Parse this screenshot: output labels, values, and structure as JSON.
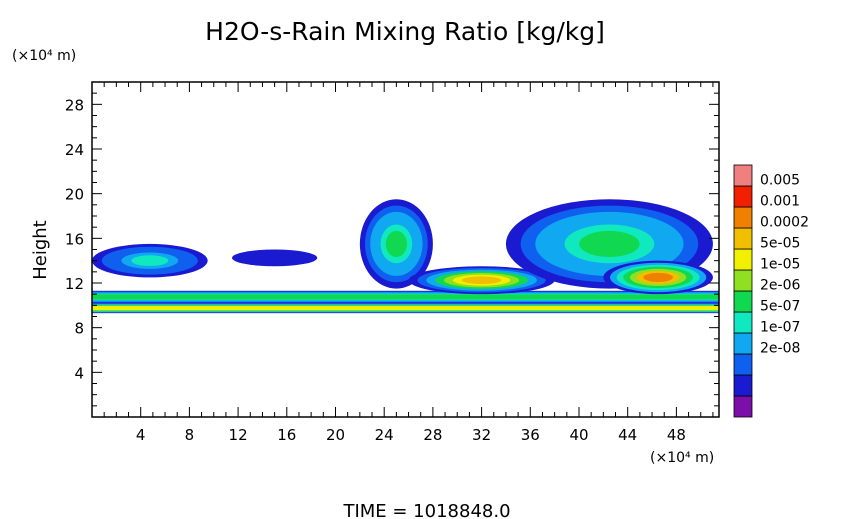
{
  "chart_data": {
    "type": "heatmap",
    "title": "H2O-s-Rain Mixing Ratio [kg/kg]",
    "ylabel": "Height",
    "y_unit": "(×10⁴ m)",
    "x_unit": "(×10⁴ m)",
    "xlim": [
      0,
      51.5
    ],
    "ylim": [
      0,
      30
    ],
    "x_ticks": [
      4,
      8,
      12,
      16,
      20,
      24,
      28,
      32,
      36,
      40,
      44,
      48
    ],
    "y_ticks": [
      4,
      8,
      12,
      16,
      20,
      24,
      28
    ],
    "time_label": "TIME = 1018848.0",
    "colorbar": {
      "labels": [
        "0.005",
        "0.001",
        "0.0002",
        "5e-05",
        "1e-05",
        "2e-06",
        "5e-07",
        "1e-07",
        "2e-08"
      ],
      "colors": [
        "#7a10a8",
        "#1a1ad0",
        "#1060f0",
        "#10a8f0",
        "#10e8c0",
        "#10d850",
        "#90e020",
        "#f0f000",
        "#f0c000",
        "#f08000",
        "#f02000",
        "#f08080"
      ]
    },
    "cloud_regions": [
      {
        "name": "stratiform-layer-lower",
        "x": [
          0,
          51.5
        ],
        "y": [
          9.3,
          10.2
        ],
        "level": 7
      },
      {
        "name": "stratiform-layer-upper",
        "x": [
          0,
          51.5
        ],
        "y": [
          10.2,
          11.3
        ],
        "level": 5
      },
      {
        "name": "anvil-west",
        "x": [
          0,
          9.5
        ],
        "y": [
          12.5,
          15.5
        ],
        "level": 4
      },
      {
        "name": "anvil-mid",
        "x": [
          11.5,
          18.5
        ],
        "y": [
          13.5,
          15
        ],
        "level": 1
      },
      {
        "name": "convective-tower-24",
        "x": [
          22,
          28
        ],
        "y": [
          11.5,
          19.5
        ],
        "level": 5
      },
      {
        "name": "convective-line-28-38",
        "x": [
          26,
          38
        ],
        "y": [
          11,
          13.5
        ],
        "level": 8
      },
      {
        "name": "anvil-east",
        "x": [
          34,
          51
        ],
        "y": [
          11.5,
          19.5
        ],
        "level": 5
      },
      {
        "name": "convective-core-46",
        "x": [
          42,
          51
        ],
        "y": [
          11,
          14
        ],
        "level": 9
      }
    ]
  }
}
